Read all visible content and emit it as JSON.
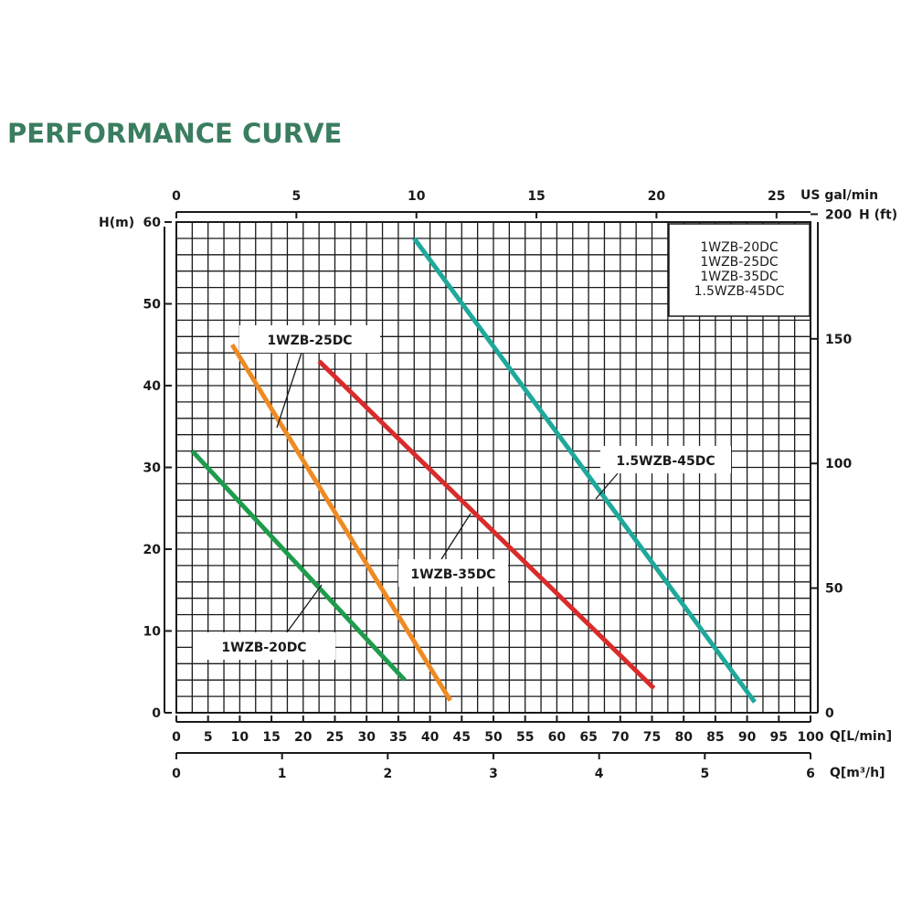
{
  "page_title": "PERFORMANCE CURVE",
  "chart_data": {
    "type": "line",
    "title": "PERFORMANCE CURVE",
    "x_bottom": {
      "label": "Q[L/min]",
      "range": [
        0,
        100
      ],
      "ticks": [
        0,
        5,
        10,
        15,
        20,
        25,
        30,
        35,
        40,
        45,
        50,
        55,
        60,
        65,
        70,
        75,
        80,
        85,
        90,
        95,
        100
      ]
    },
    "x_bottom2": {
      "label": "Q[m³/h]",
      "range": [
        0,
        6
      ],
      "ticks": [
        0,
        1,
        2,
        3,
        4,
        5,
        6
      ]
    },
    "x_top": {
      "label": "US gal/min",
      "range": [
        0,
        26.417
      ],
      "ticks": [
        0,
        5,
        10,
        15,
        20,
        25
      ]
    },
    "y_left": {
      "label": "H(m)",
      "range": [
        0,
        60
      ],
      "ticks": [
        0,
        10,
        20,
        30,
        40,
        50,
        60
      ]
    },
    "y_right": {
      "label": "H (ft)",
      "range": [
        0,
        196.85
      ],
      "ticks": [
        0,
        50,
        100,
        150,
        200
      ]
    },
    "grid": true,
    "legend_placement": "top-right",
    "legend": [
      "1WZB-20DC",
      "1WZB-25DC",
      "1WZB-35DC",
      "1.5WZB-45DC"
    ],
    "series": [
      {
        "name": "1WZB-20DC",
        "color": "#1e9b4b",
        "x": [
          2.5,
          36
        ],
        "y": [
          32,
          4
        ]
      },
      {
        "name": "1WZB-25DC",
        "color": "#ef8a22",
        "x": [
          8.8,
          43.2
        ],
        "y": [
          45,
          1.5
        ]
      },
      {
        "name": "1WZB-35DC",
        "color": "#d92b2b",
        "x": [
          22.5,
          75.3
        ],
        "y": [
          43,
          3
        ]
      },
      {
        "name": "1.5WZB-45DC",
        "color": "#1fa89c",
        "x": [
          37.5,
          91.2
        ],
        "y": [
          58,
          1.3
        ]
      }
    ],
    "callouts": [
      {
        "text": "1WZB-25DC",
        "series": 1
      },
      {
        "text": "1WZB-20DC",
        "series": 0
      },
      {
        "text": "1WZB-35DC",
        "series": 2
      },
      {
        "text": "1.5WZB-45DC",
        "series": 3
      }
    ]
  }
}
